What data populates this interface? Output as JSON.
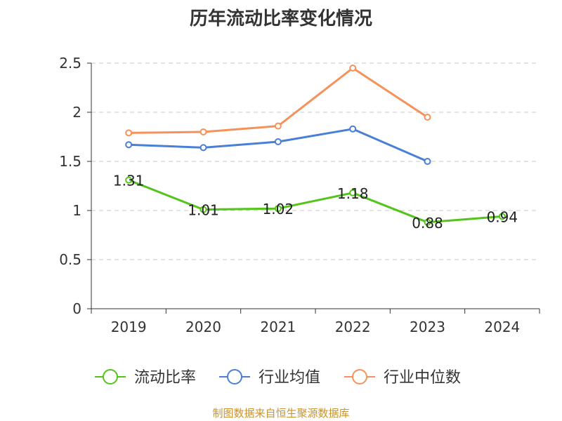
{
  "chart_data": {
    "type": "line",
    "title": "历年流动比率变化情况",
    "categories": [
      "2019",
      "2020",
      "2021",
      "2022",
      "2023",
      "2024"
    ],
    "ylim": [
      0,
      2.5
    ],
    "yticks": [
      "0",
      "0.5",
      "1",
      "1.5",
      "2",
      "2.5"
    ],
    "grid": true,
    "legend_position": "bottom",
    "series": [
      {
        "name": "流动比率",
        "color": "#52c41a",
        "values": [
          1.31,
          1.01,
          1.02,
          1.18,
          0.88,
          0.94
        ],
        "labels": [
          "1.31",
          "1.01",
          "1.02",
          "1.18",
          "0.88",
          "0.94"
        ],
        "show_labels": true
      },
      {
        "name": "行业均值",
        "color": "#4a7fd6",
        "values": [
          1.67,
          1.64,
          1.7,
          1.83,
          1.5,
          null
        ],
        "show_labels": false
      },
      {
        "name": "行业中位数",
        "color": "#f7915a",
        "values": [
          1.79,
          1.8,
          1.86,
          2.45,
          1.95,
          null
        ],
        "show_labels": false
      }
    ]
  },
  "footer": {
    "source": "制图数据来自恒生聚源数据库"
  }
}
